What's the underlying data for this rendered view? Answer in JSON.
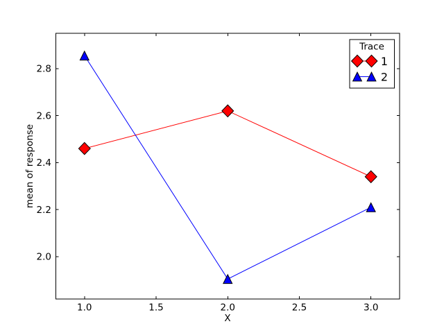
{
  "chart_data": {
    "type": "line",
    "title": "",
    "xlabel": "X",
    "ylabel": "mean of response",
    "x": [
      1,
      2,
      3
    ],
    "series": [
      {
        "name": "1",
        "marker": "diamond",
        "color": "#ff0000",
        "values": [
          2.46,
          2.62,
          2.34
        ]
      },
      {
        "name": "2",
        "marker": "triangle-up",
        "color": "#0000ff",
        "values": [
          2.855,
          1.905,
          2.21
        ]
      }
    ],
    "xlim": [
      0.8,
      3.2
    ],
    "ylim": [
      1.82,
      2.95
    ],
    "xticks": [
      1.0,
      1.5,
      2.0,
      2.5,
      3.0
    ],
    "xtick_labels": [
      "1.0",
      "1.5",
      "2.0",
      "2.5",
      "3.0"
    ],
    "yticks": [
      2.0,
      2.2,
      2.4,
      2.6,
      2.8
    ],
    "ytick_labels": [
      "2.0",
      "2.2",
      "2.4",
      "2.6",
      "2.8"
    ],
    "grid": false,
    "legend": {
      "title": "Trace",
      "position": "upper-right",
      "entries": [
        {
          "label": "1",
          "marker": "diamond",
          "color": "#ff0000"
        },
        {
          "label": "2",
          "marker": "triangle-up",
          "color": "#0000ff"
        }
      ]
    },
    "colors": {
      "background": "#ffffff",
      "axis": "#000000",
      "text": "#000000",
      "marker_edge": "#000000"
    }
  }
}
